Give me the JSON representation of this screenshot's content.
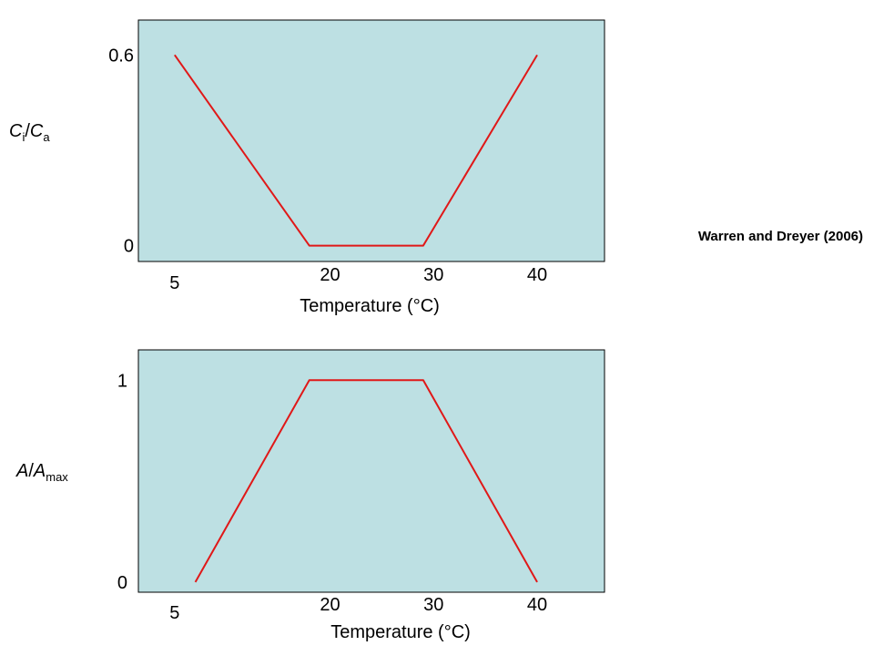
{
  "colors": {
    "plot_bg": "#bde0e3",
    "plot_border": "#000000",
    "line": "#e01818",
    "axis_line": "#000000"
  },
  "source_note": "Warren and Dreyer (2006)",
  "chart_data": [
    {
      "type": "line",
      "xlabel": "Temperature (°C)",
      "ylabel_main": "C",
      "ylabel_main_sub": "i",
      "ylabel_slash": "/",
      "ylabel_den": "C",
      "ylabel_den_sub": "a",
      "xticks": [
        {
          "value": 5,
          "label": "5"
        },
        {
          "value": 20,
          "label": "20"
        },
        {
          "value": 30,
          "label": "30"
        },
        {
          "value": 40,
          "label": "40"
        }
      ],
      "yticks": [
        {
          "value": 0,
          "label": "0"
        },
        {
          "value": 0.6,
          "label": "0.6"
        }
      ],
      "xlim": [
        1.5,
        46.5
      ],
      "ylim": [
        -0.05,
        0.71
      ],
      "grid": false,
      "series": [
        {
          "x": [
            5,
            18,
            29,
            40
          ],
          "y": [
            0.6,
            0,
            0,
            0.6
          ]
        }
      ]
    },
    {
      "type": "line",
      "xlabel": "Temperature (°C)",
      "ylabel_main": "A",
      "ylabel_main_sub": "",
      "ylabel_slash": "/",
      "ylabel_den": "A",
      "ylabel_den_sub": "max",
      "xticks": [
        {
          "value": 5,
          "label": "5"
        },
        {
          "value": 20,
          "label": "20"
        },
        {
          "value": 30,
          "label": "30"
        },
        {
          "value": 40,
          "label": "40"
        }
      ],
      "yticks": [
        {
          "value": 0,
          "label": "0"
        },
        {
          "value": 1,
          "label": "1"
        }
      ],
      "xlim": [
        1.5,
        46.5
      ],
      "ylim": [
        -0.05,
        1.15
      ],
      "grid": false,
      "series": [
        {
          "x": [
            7,
            18,
            29,
            40
          ],
          "y": [
            0,
            1,
            1,
            0
          ]
        }
      ]
    }
  ]
}
